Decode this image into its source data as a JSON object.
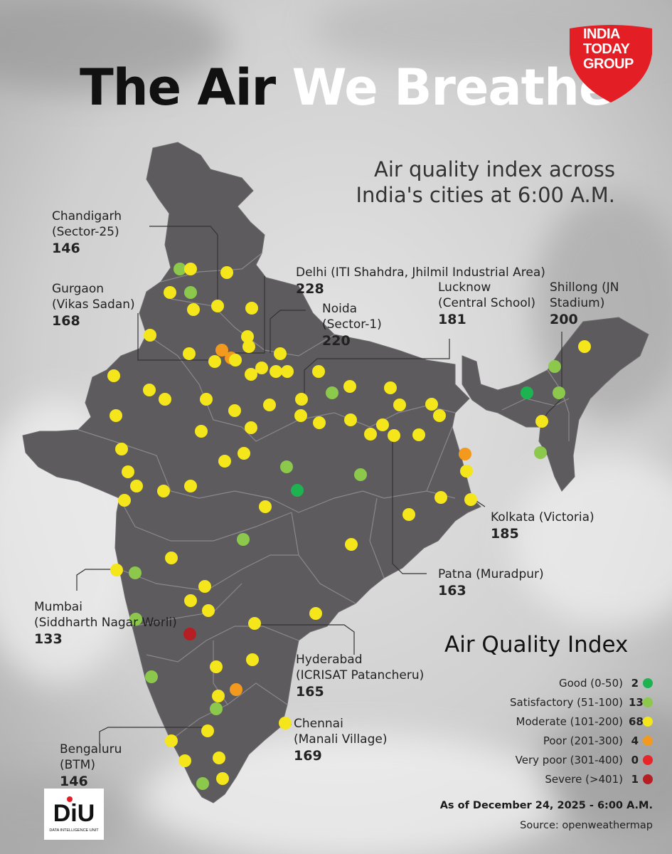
{
  "title": {
    "part1": "The Air",
    "part2": "We Breathe"
  },
  "logo": {
    "line1": "INDIA",
    "line2": "TODAY",
    "line3": "GROUP",
    "color": "#e31e24"
  },
  "subtitle": {
    "line1": "Air quality index across",
    "line2": "India's cities at 6:00 A.M."
  },
  "callouts": [
    {
      "name": "Chandigarh",
      "sub": "(Sector-25)",
      "value": "146"
    },
    {
      "name": "Delhi (ITI Shahdra, Jhilmil Industrial Area)",
      "sub": "",
      "value": "228"
    },
    {
      "name": "Gurgaon",
      "sub": "(Vikas Sadan)",
      "value": "168"
    },
    {
      "name": "Noida",
      "sub": "(Sector-1)",
      "value": "220"
    },
    {
      "name": "Lucknow",
      "sub": "(Central School)",
      "value": "181"
    },
    {
      "name": "Shillong (JN",
      "sub": "Stadium)",
      "value": "200"
    },
    {
      "name": "Kolkata (Victoria)",
      "sub": "",
      "value": "185"
    },
    {
      "name": "Patna (Muradpur)",
      "sub": "",
      "value": "163"
    },
    {
      "name": "Mumbai",
      "sub": "(Siddharth Nagar Worli)",
      "value": "133"
    },
    {
      "name": "Hyderabad",
      "sub": "(ICRISAT Patancheru)",
      "value": "165"
    },
    {
      "name": "Chennai",
      "sub": "(Manali Village)",
      "value": "169"
    },
    {
      "name": "Bengaluru",
      "sub": "(BTM)",
      "value": "146"
    }
  ],
  "legend": {
    "title": "Air Quality Index",
    "items": [
      {
        "label": "Good (0-50)",
        "count": "2",
        "color": "#1db350"
      },
      {
        "label": "Satisfactory (51-100)",
        "count": "13",
        "color": "#8cc84b"
      },
      {
        "label": "Moderate (101-200)",
        "count": "68",
        "color": "#f4e61b"
      },
      {
        "label": "Poor (201-300)",
        "count": "4",
        "color": "#f39a1e"
      },
      {
        "label": "Very poor (301-400)",
        "count": "0",
        "color": "#e8262a"
      },
      {
        "label": "Severe (>401)",
        "count": "1",
        "color": "#b51f24"
      }
    ]
  },
  "as_of": "As of December 24, 2025 - 6:00 A.M.",
  "source": "Source: openweathermap",
  "diu": {
    "mark": "DiU",
    "caption": "DATA INTELLIGENCE UNIT"
  },
  "colors": {
    "map_fill": "#5d5b5e",
    "border_lines": "#8a888b"
  }
}
